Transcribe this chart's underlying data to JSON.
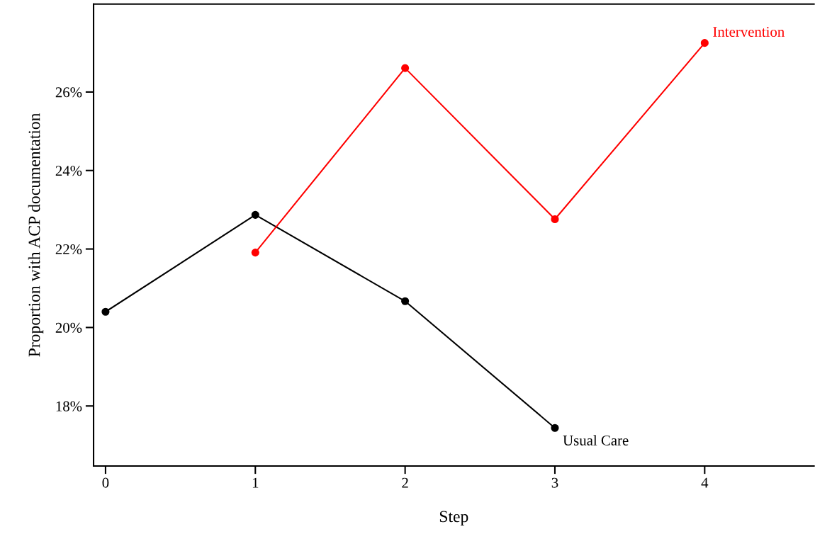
{
  "chart_data": {
    "type": "line",
    "xlabel": "Step",
    "ylabel": "Proportion with ACP documentation",
    "series": [
      {
        "name": "Usual Care",
        "color": "#000000",
        "x": [
          0,
          1,
          2,
          3
        ],
        "values": [
          20.4,
          22.87,
          20.67,
          17.44
        ]
      },
      {
        "name": "Intervention",
        "color": "#ff0000",
        "x": [
          1,
          2,
          3,
          4
        ],
        "values": [
          21.91,
          26.61,
          22.76,
          27.25
        ]
      }
    ],
    "xlim": [
      -0.08,
      4.73
    ],
    "xticks": [
      0,
      1,
      2,
      3,
      4
    ],
    "ylim": [
      16.47,
      28.24
    ],
    "yticks": [
      {
        "value": 18,
        "label": "18%"
      },
      {
        "value": 20,
        "label": "20%"
      },
      {
        "value": 22,
        "label": "22%"
      },
      {
        "value": 24,
        "label": "24%"
      },
      {
        "value": 26,
        "label": "26%"
      }
    ],
    "marker": "circle",
    "line_style": "solid",
    "grid": false,
    "legend": false
  }
}
